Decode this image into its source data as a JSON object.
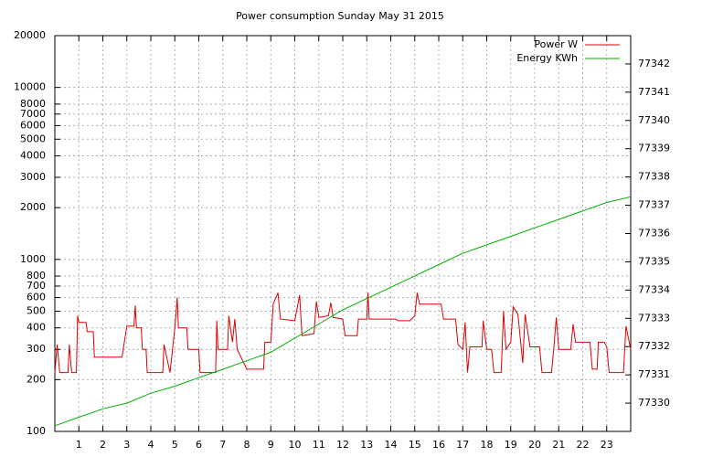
{
  "chart_data": {
    "type": "line",
    "title": "Power consumption Sunday May 31 2015",
    "xlim": [
      0,
      24
    ],
    "xticks": [
      1,
      2,
      3,
      4,
      5,
      6,
      7,
      8,
      9,
      10,
      11,
      12,
      13,
      14,
      15,
      16,
      17,
      18,
      19,
      20,
      21,
      22,
      23
    ],
    "ylim": [
      100,
      20000
    ],
    "yscale": "log",
    "yticks": [
      100,
      200,
      300,
      400,
      500,
      600,
      700,
      800,
      1000,
      2000,
      3000,
      4000,
      5000,
      6000,
      7000,
      8000,
      10000,
      20000
    ],
    "y2lim": [
      77329,
      77343
    ],
    "y2ticks": [
      77330,
      77331,
      77332,
      77333,
      77334,
      77335,
      77336,
      77337,
      77338,
      77339,
      77340,
      77341,
      77342
    ],
    "grid": true,
    "legend": "top-right",
    "series": [
      {
        "name": "Power W",
        "color": "#e00000",
        "x": [
          0,
          0.1,
          0.2,
          0.55,
          0.6,
          0.7,
          0.9,
          0.95,
          1.0,
          1.3,
          1.35,
          1.6,
          1.65,
          2.8,
          2.85,
          3.0,
          3.3,
          3.35,
          3.4,
          3.6,
          3.65,
          3.8,
          3.85,
          4.5,
          4.55,
          4.8,
          5.0,
          5.1,
          5.15,
          5.5,
          5.55,
          6.0,
          6.05,
          6.7,
          6.75,
          6.8,
          7.2,
          7.25,
          7.4,
          7.5,
          7.6,
          8.0,
          8.7,
          8.75,
          9.0,
          9.1,
          9.3,
          9.4,
          10.0,
          10.2,
          10.3,
          10.8,
          10.9,
          11.0,
          11.4,
          11.5,
          11.6,
          12.0,
          12.1,
          12.6,
          12.65,
          13.0,
          13.05,
          13.1,
          14.2,
          14.3,
          14.8,
          15.0,
          15.1,
          15.2,
          16.1,
          16.2,
          16.7,
          16.8,
          17.0,
          17.1,
          17.2,
          17.3,
          17.8,
          17.85,
          18.0,
          18.2,
          18.3,
          18.6,
          18.7,
          18.8,
          19.0,
          19.1,
          19.3,
          19.5,
          19.6,
          19.8,
          20.2,
          20.3,
          20.7,
          20.8,
          20.9,
          21.0,
          21.5,
          21.6,
          21.7,
          22.3,
          22.4,
          22.6,
          22.65,
          22.9,
          23.0,
          23.1,
          23.7,
          23.8,
          24.0
        ],
        "values": [
          220,
          320,
          220,
          220,
          320,
          220,
          220,
          470,
          430,
          430,
          380,
          380,
          270,
          270,
          300,
          410,
          410,
          540,
          400,
          400,
          300,
          300,
          220,
          220,
          320,
          220,
          400,
          600,
          400,
          400,
          300,
          300,
          220,
          220,
          440,
          300,
          300,
          470,
          330,
          450,
          300,
          230,
          230,
          330,
          330,
          550,
          640,
          450,
          440,
          620,
          360,
          370,
          570,
          460,
          470,
          560,
          460,
          450,
          360,
          360,
          450,
          450,
          640,
          450,
          450,
          440,
          440,
          470,
          640,
          550,
          550,
          450,
          450,
          320,
          300,
          430,
          220,
          310,
          310,
          440,
          300,
          300,
          220,
          220,
          500,
          300,
          330,
          530,
          480,
          250,
          480,
          310,
          310,
          220,
          220,
          310,
          460,
          300,
          300,
          420,
          330,
          330,
          230,
          230,
          330,
          330,
          310,
          220,
          220,
          410,
          300
        ]
      },
      {
        "name": "Energy KWh",
        "color": "#00b000",
        "axis": "y2",
        "x": [
          0,
          1,
          2,
          3,
          4,
          5,
          6,
          7,
          8,
          9,
          10,
          11,
          12,
          13,
          14,
          15,
          16,
          17,
          18,
          19,
          20,
          21,
          22,
          23,
          24
        ],
        "values": [
          77329.2,
          77329.5,
          77329.8,
          77330.0,
          77330.35,
          77330.6,
          77330.9,
          77331.2,
          77331.5,
          77331.8,
          77332.3,
          77332.8,
          77333.3,
          77333.7,
          77334.1,
          77334.5,
          77334.9,
          77335.3,
          77335.6,
          77335.9,
          77336.2,
          77336.5,
          77336.8,
          77337.1,
          77337.3
        ]
      }
    ]
  }
}
